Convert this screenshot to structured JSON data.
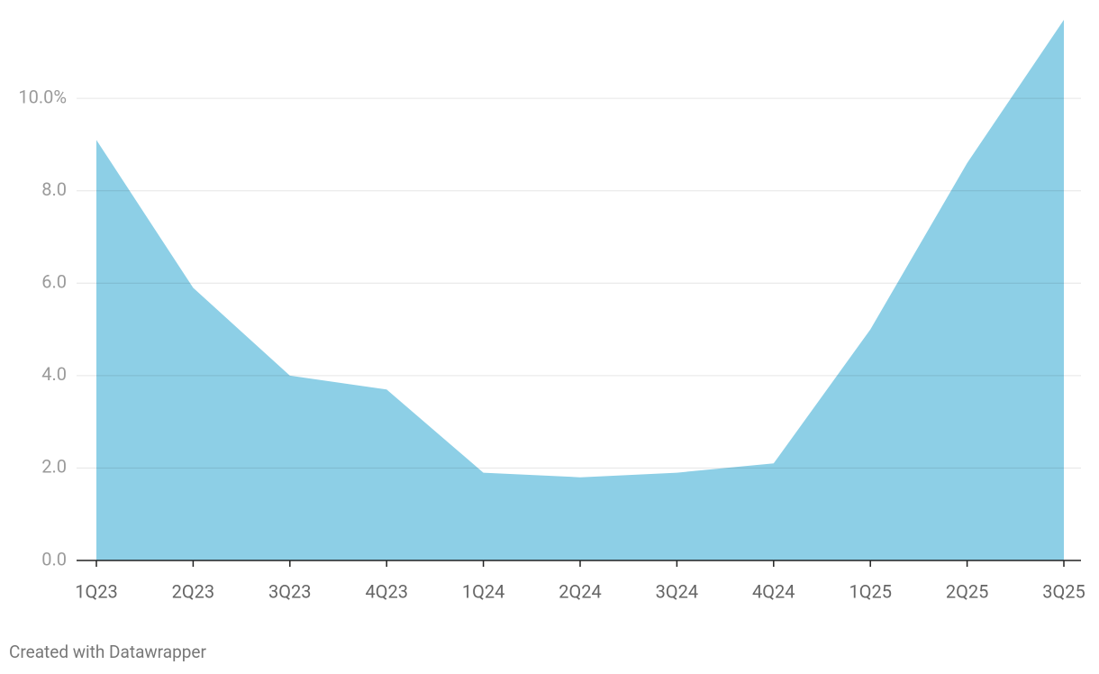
{
  "chart_data": {
    "type": "area",
    "categories": [
      "1Q23",
      "2Q23",
      "3Q23",
      "4Q23",
      "1Q24",
      "2Q24",
      "3Q24",
      "4Q24",
      "1Q25",
      "2Q25",
      "3Q25"
    ],
    "values": [
      9.1,
      5.9,
      4.0,
      3.7,
      1.9,
      1.8,
      1.9,
      2.1,
      5.0,
      8.6,
      11.7
    ],
    "color": "#8dcfe6",
    "ylim": [
      0,
      11.7
    ],
    "yticks": [
      {
        "value": 0,
        "label": "0.0"
      },
      {
        "value": 2,
        "label": "2.0"
      },
      {
        "value": 4,
        "label": "4.0"
      },
      {
        "value": 6,
        "label": "6.0"
      },
      {
        "value": 8,
        "label": "8.0"
      },
      {
        "value": 10,
        "label": "10.0%"
      }
    ],
    "grid": true,
    "credit": "Created with Datawrapper"
  }
}
